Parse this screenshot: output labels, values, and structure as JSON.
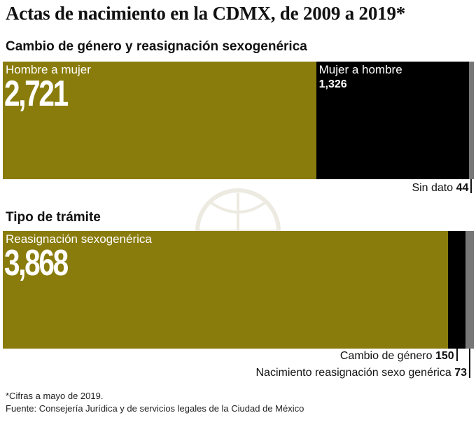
{
  "title": "Actas de nacimiento en la CDMX, de 2009 a 2019*",
  "chart_data": [
    {
      "type": "bar",
      "orientation": "horizontal-stacked",
      "title": "Cambio de género y reasignación sexogenérica",
      "total": 4091,
      "segments": [
        {
          "name": "Hombre a mujer",
          "value": 2721,
          "display": "2,721",
          "color": "#8a7c0c",
          "label_position": "inside-large"
        },
        {
          "name": "Mujer a hombre",
          "value": 1326,
          "display": "1,326",
          "color": "#000000",
          "label_position": "inside-small"
        },
        {
          "name": "Sin dato",
          "value": 44,
          "display": "44",
          "color": "#777777",
          "label_position": "outside"
        }
      ]
    },
    {
      "type": "bar",
      "orientation": "horizontal-stacked",
      "title": "Tipo de trámite",
      "total": 4091,
      "segments": [
        {
          "name": "Reasignación sexogenérica",
          "value": 3868,
          "display": "3,868",
          "color": "#8a7c0c",
          "label_position": "inside-large"
        },
        {
          "name": "Cambio de género",
          "value": 150,
          "display": "150",
          "color": "#000000",
          "label_position": "outside"
        },
        {
          "name": "Nacimiento reasignación sexo genérica",
          "value": 73,
          "display": "73",
          "color": "#777777",
          "label_position": "outside"
        }
      ]
    }
  ],
  "footnotes": {
    "note": "*Cifras a mayo de 2019.",
    "source": "Fuente: Consejería Jurídica y de servicios legales de la Ciudad de México"
  }
}
